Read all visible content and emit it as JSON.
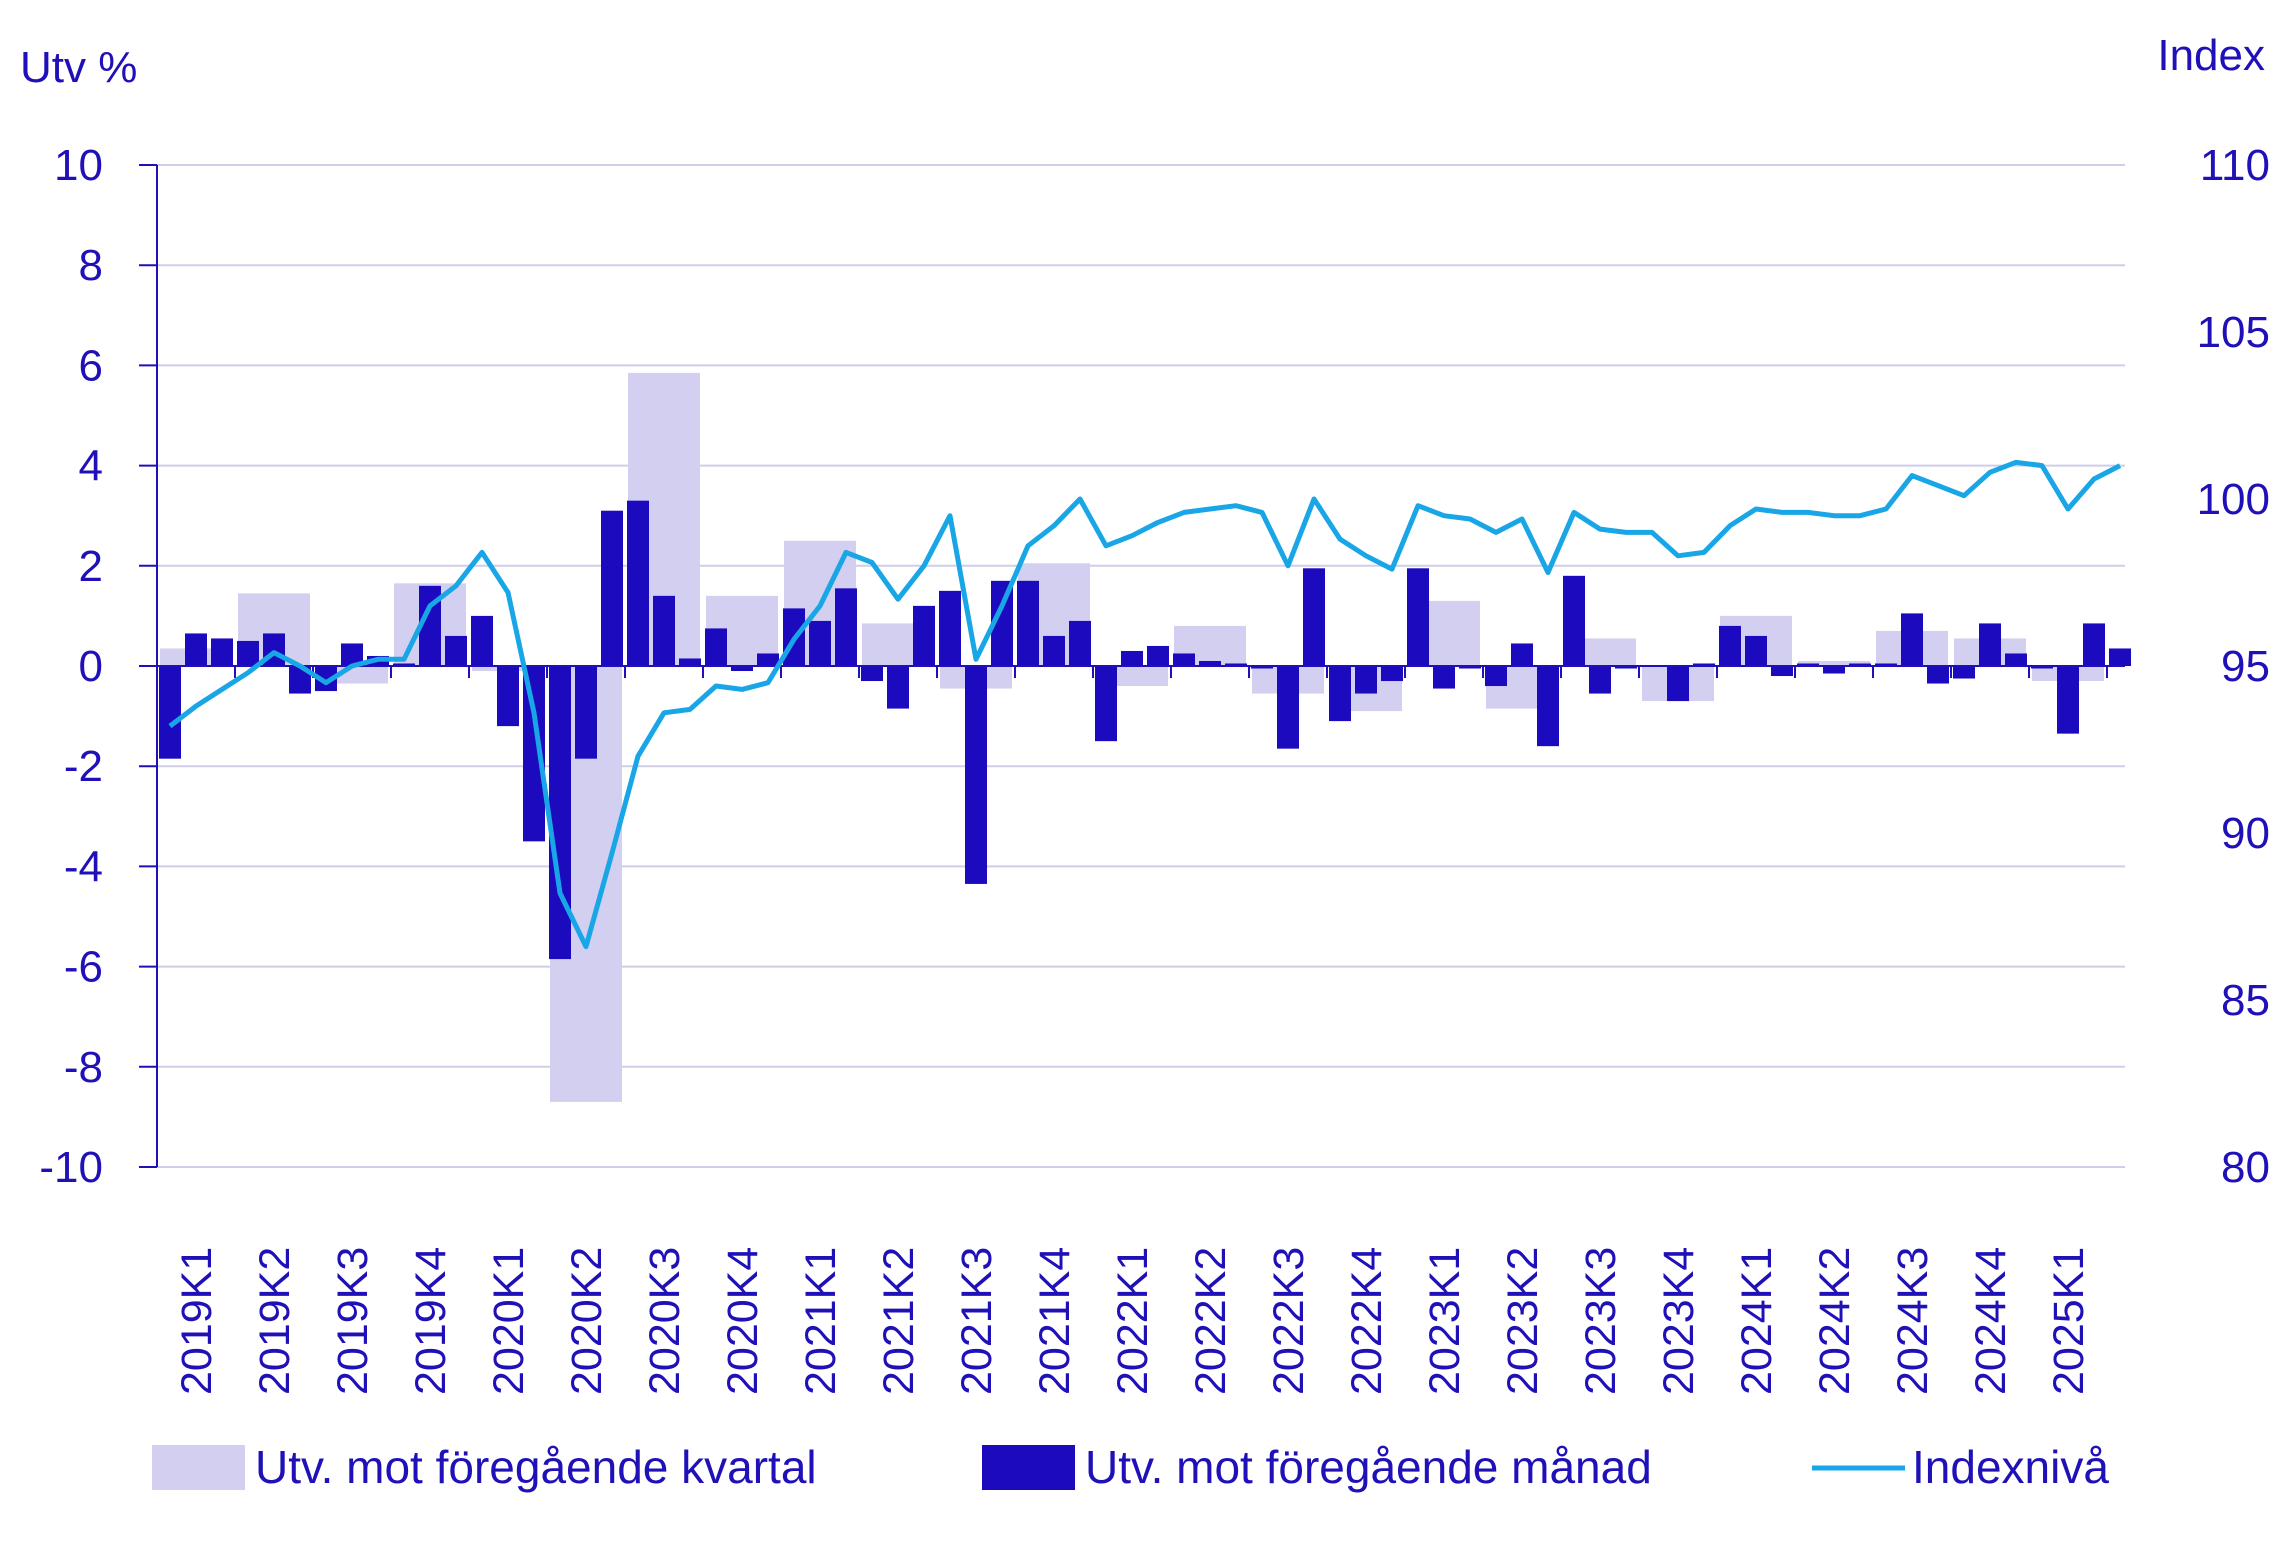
{
  "chart_data": {
    "type": "bar",
    "left_axis": {
      "title": "Utv %",
      "ylim": [
        -10,
        10
      ],
      "ticks": [
        10,
        8,
        6,
        4,
        2,
        0,
        -2,
        -4,
        -6,
        -8,
        -10
      ]
    },
    "right_axis": {
      "title": "Index",
      "ylim": [
        80,
        110
      ],
      "ticks": [
        110,
        105,
        100,
        95,
        90,
        85,
        80
      ]
    },
    "grid": true,
    "legend_position": "bottom",
    "colors": {
      "quarter_bar": "#d2cff0",
      "month_bar": "#1c0abf",
      "index_line": "#19a6e6",
      "text": "#1f10b8",
      "grid": "#cfcde8",
      "axis": "#1f10b8"
    },
    "months_start": "2019-01",
    "quarter_labels": [
      "2019K1",
      "2019K2",
      "2019K3",
      "2019K4",
      "2020K1",
      "2020K2",
      "2020K3",
      "2020K4",
      "2021K1",
      "2021K2",
      "2021K3",
      "2021K4",
      "2022K1",
      "2022K2",
      "2022K3",
      "2022K4",
      "2023K1",
      "2023K2",
      "2023K3",
      "2023K4",
      "2024K1",
      "2024K2",
      "2024K3",
      "2024K4",
      "2025K1"
    ],
    "series": [
      {
        "name": "Utv. mot föregående kvartal",
        "kind": "quarter_bar",
        "values": [
          0.35,
          1.45,
          -0.35,
          1.65,
          -0.1,
          -8.7,
          5.85,
          1.4,
          2.5,
          0.85,
          -0.45,
          2.05,
          -0.4,
          0.8,
          -0.55,
          -0.9,
          1.3,
          -0.85,
          0.55,
          -0.7,
          1.0,
          0.1,
          0.7,
          0.55,
          -0.3
        ]
      },
      {
        "name": "Utv. mot föregående månad",
        "kind": "month_bar",
        "values": [
          -1.85,
          0.65,
          0.55,
          0.5,
          0.65,
          -0.55,
          -0.5,
          0.45,
          0.2,
          0.05,
          1.6,
          0.6,
          1.0,
          -1.2,
          -3.5,
          -5.85,
          -1.85,
          3.1,
          3.3,
          1.4,
          0.15,
          0.75,
          -0.1,
          0.25,
          1.15,
          0.9,
          1.55,
          -0.3,
          -0.85,
          1.2,
          1.5,
          -4.35,
          1.7,
          1.7,
          0.6,
          0.9,
          -1.5,
          0.3,
          0.4,
          0.25,
          0.1,
          0.05,
          -0.05,
          -1.65,
          1.95,
          -1.1,
          -0.55,
          -0.3,
          1.95,
          -0.45,
          -0.05,
          -0.4,
          0.45,
          -1.6,
          1.8,
          -0.55,
          -0.05,
          0.0,
          -0.7,
          0.05,
          0.8,
          0.6,
          -0.2,
          0.05,
          -0.15,
          0.05,
          0.05,
          1.05,
          -0.35,
          -0.25,
          0.85,
          0.25,
          -0.05,
          -1.35,
          0.85,
          0.35
        ]
      },
      {
        "name": "Indexnivå",
        "kind": "index_line",
        "values": [
          93.2,
          93.8,
          94.3,
          94.8,
          95.4,
          95.0,
          94.5,
          95.0,
          95.2,
          95.2,
          96.8,
          97.4,
          98.4,
          97.2,
          93.6,
          88.2,
          86.6,
          89.4,
          92.3,
          93.6,
          93.7,
          94.4,
          94.3,
          94.5,
          95.8,
          96.8,
          98.4,
          98.1,
          97.0,
          98.0,
          99.5,
          95.2,
          96.8,
          98.6,
          99.2,
          100.0,
          98.6,
          98.9,
          99.3,
          99.6,
          99.7,
          99.8,
          99.6,
          98.0,
          100.0,
          98.8,
          98.3,
          97.9,
          99.8,
          99.5,
          99.4,
          99.0,
          99.4,
          97.8,
          99.6,
          99.1,
          99.0,
          99.0,
          98.3,
          98.4,
          99.2,
          99.7,
          99.6,
          99.6,
          99.5,
          99.5,
          99.7,
          100.7,
          100.4,
          100.1,
          100.8,
          101.1,
          101.0,
          99.7,
          100.6,
          101.0
        ]
      }
    ]
  }
}
